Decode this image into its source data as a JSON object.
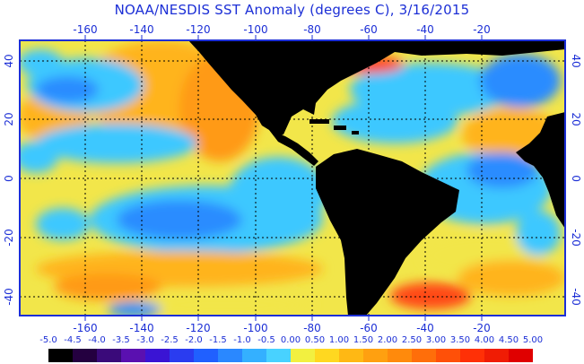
{
  "title": "NOAA/NESDIS SST Anomaly (degrees C), 3/16/2015",
  "axes": {
    "lon_labels": [
      "-160",
      "-140",
      "-120",
      "-100",
      "-80",
      "-60",
      "-40",
      "-20"
    ],
    "lat_labels": [
      "40",
      "20",
      "0",
      "-20",
      "-40"
    ]
  },
  "legend": {
    "labels": [
      "-5.0",
      "-4.5",
      "-4.0",
      "-3.5",
      "-3.0",
      "-2.5",
      "-2.0",
      "-1.5",
      "-1.0",
      "-0.5",
      "0.00",
      "0.50",
      "1.00",
      "1.50",
      "2.00",
      "2.50",
      "3.00",
      "3.50",
      "4.00",
      "4.50",
      "5.00"
    ],
    "colors": [
      "#000000",
      "#240040",
      "#3a0a7a",
      "#5a10b0",
      "#3a14d4",
      "#2a3cf0",
      "#2060ff",
      "#2a88ff",
      "#34b0ff",
      "#48d2ff",
      "#f2f040",
      "#ffd820",
      "#ffb814",
      "#ffa010",
      "#ff8a0c",
      "#ff6e0a",
      "#ff5008",
      "#ff3006",
      "#f01c04",
      "#e00000"
    ]
  },
  "colors": {
    "frame": "#1c2fd6",
    "land": "#000000",
    "grid": "#000000",
    "ocean_yellow": "#f2e64a",
    "ocean_orange": "#ffb41c",
    "ocean_cyan": "#3ec8ff",
    "ocean_blue": "#2a8cff",
    "ocean_red": "#ff4a14"
  }
}
